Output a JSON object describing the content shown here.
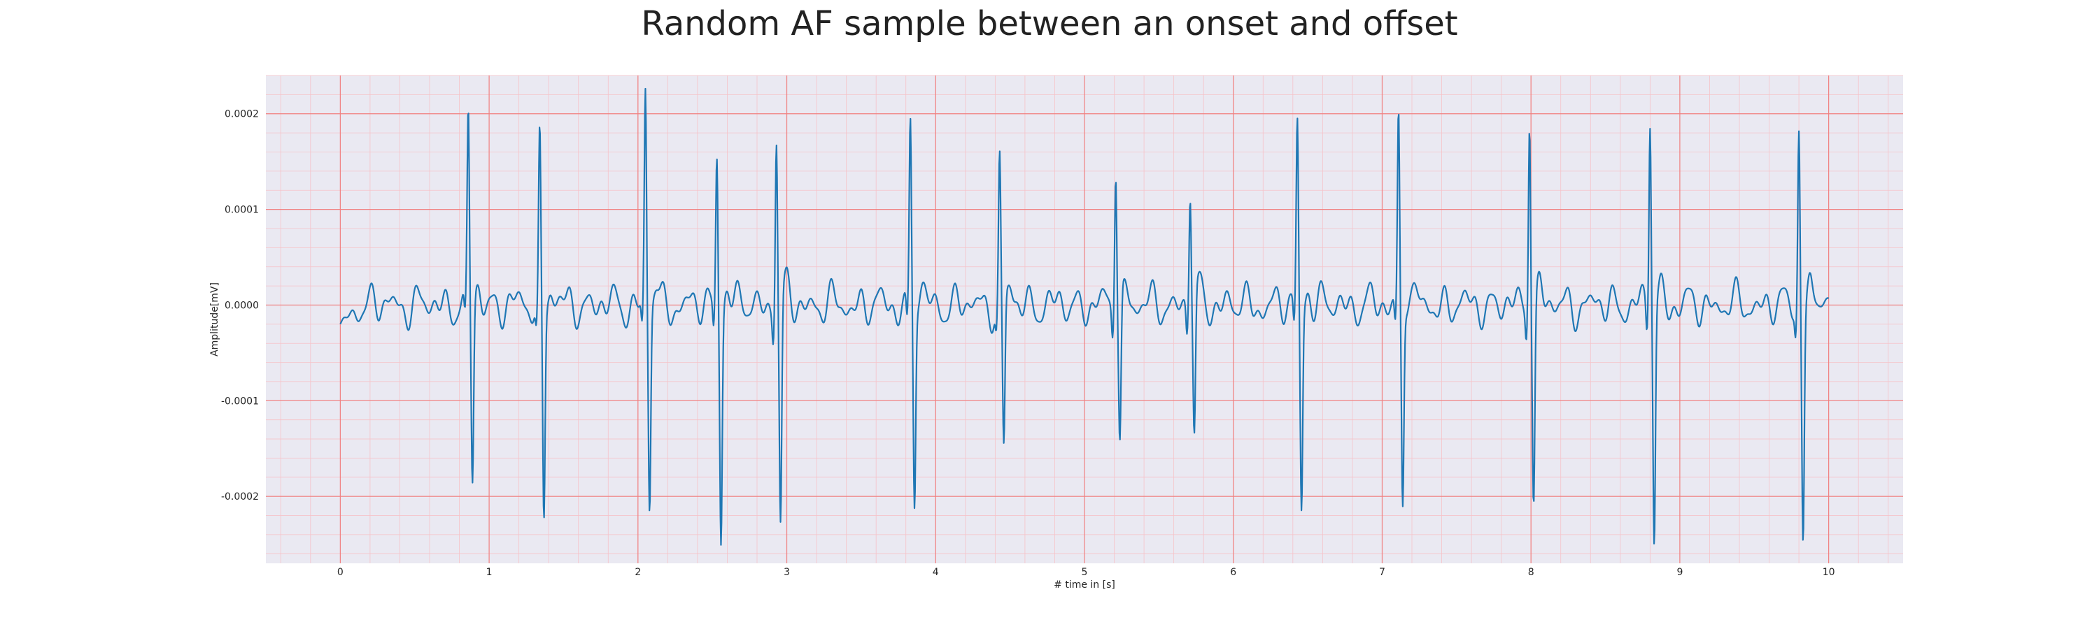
{
  "chart_data": {
    "type": "line",
    "title": "Random AF sample between an onset and offset",
    "xlabel": "# time in [s]",
    "ylabel": "Amplitude[mV]",
    "xlim": [
      -0.5,
      10.5
    ],
    "ylim": [
      -0.00027,
      0.00024
    ],
    "xticks": [
      0,
      1,
      2,
      3,
      4,
      5,
      6,
      7,
      8,
      9,
      10
    ],
    "xtick_labels": [
      "0",
      "1",
      "2",
      "3",
      "4",
      "5",
      "6",
      "7",
      "8",
      "9",
      "10"
    ],
    "yticks": [
      0.0002,
      0.0001,
      0.0,
      -0.0001,
      -0.0002
    ],
    "ytick_labels": [
      "0.0002",
      "0.0001",
      "0.0000",
      "-0.0001",
      "-0.0002"
    ],
    "grid": "major and minor",
    "colors": {
      "line": "#1f77b4",
      "plot_background": "#eae9f2",
      "major_grid": "#f08080",
      "minor_grid": "#f6c2c8"
    },
    "beats": [
      {
        "t": 0.86,
        "peak": 0.000195,
        "trough": -0.000185
      },
      {
        "t": 1.34,
        "peak": 0.00017,
        "trough": -0.000222
      },
      {
        "t": 2.05,
        "peak": 0.00022,
        "trough": -0.00021
      },
      {
        "t": 2.53,
        "peak": 0.00016,
        "trough": -0.000237
      },
      {
        "t": 2.93,
        "peak": 0.00018,
        "trough": -0.000237
      },
      {
        "t": 3.83,
        "peak": 0.00019,
        "trough": -0.000207
      },
      {
        "t": 4.43,
        "peak": 0.00015,
        "trough": -0.000155
      },
      {
        "t": 5.21,
        "peak": 0.000155,
        "trough": -0.000145
      },
      {
        "t": 5.71,
        "peak": 0.000125,
        "trough": -0.000145
      },
      {
        "t": 6.43,
        "peak": 0.00019,
        "trough": -0.000213
      },
      {
        "t": 7.11,
        "peak": 0.0002,
        "trough": -0.000207
      },
      {
        "t": 7.99,
        "peak": 0.000205,
        "trough": -0.0002
      },
      {
        "t": 8.8,
        "peak": 0.0002,
        "trough": -0.000245
      },
      {
        "t": 9.8,
        "peak": 0.000185,
        "trough": -0.000235
      }
    ],
    "start_value": -2e-05,
    "end_value": 7e-06,
    "x_range": [
      0,
      10
    ]
  }
}
